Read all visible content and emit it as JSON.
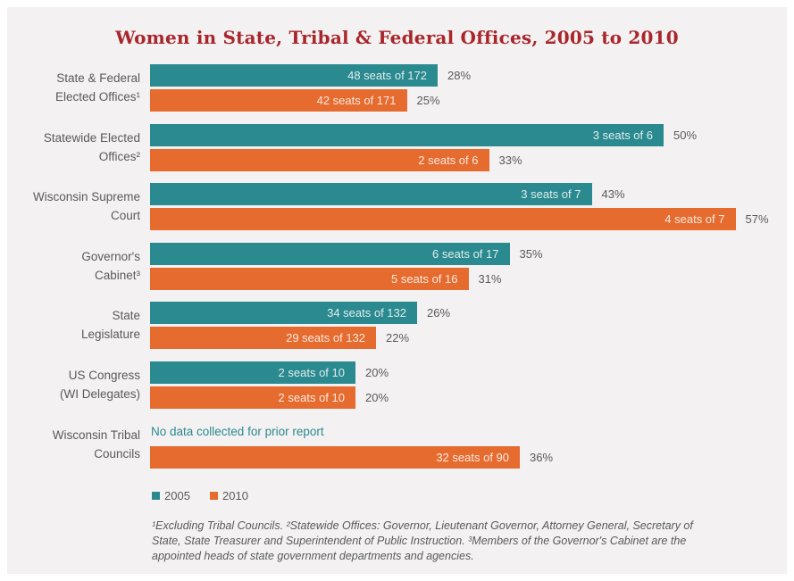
{
  "chart_data": {
    "type": "bar",
    "orientation": "horizontal",
    "title": "Women in State, Tribal & Federal Offices, 2005 to 2010",
    "categories": [
      "State & Federal\nElected Offices¹",
      "Statewide Elected\nOffices²",
      "Wisconsin Supreme\nCourt",
      "Governor's\nCabinet³",
      "State\nLegislature",
      "US Congress\n(WI Delegates)",
      "Wisconsin Tribal\nCouncils"
    ],
    "series": [
      {
        "name": "2005",
        "color": "#2b8a8f",
        "values": [
          28,
          50,
          43,
          35,
          26,
          20,
          null
        ],
        "bar_labels": [
          "48 seats of 172",
          "3 seats of 6",
          "3 seats of 7",
          "6 seats of 17",
          "34 seats of 132",
          "2 seats of 10",
          ""
        ],
        "value_labels": [
          "28%",
          "50%",
          "43%",
          "35%",
          "26%",
          "20%",
          ""
        ]
      },
      {
        "name": "2010",
        "color": "#e66b2f",
        "values": [
          25,
          33,
          57,
          31,
          22,
          20,
          36
        ],
        "bar_labels": [
          "42 seats of 171",
          "2 seats of 6",
          "4 seats of 7",
          "5 seats of 16",
          "29 seats of 132",
          "2 seats of 10",
          "32 seats of 90"
        ],
        "value_labels": [
          "25%",
          "33%",
          "57%",
          "31%",
          "22%",
          "20%",
          "36%"
        ]
      }
    ],
    "annotations": [
      "No data collected for prior report"
    ],
    "legend_position": "bottom-left",
    "grid": false
  },
  "footnote": "¹Excluding Tribal Councils. ²Statewide Offices: Governor, Lieutenant Governor, Attorney General, Secretary of State, State Treasurer and Superintendent of Public Instruction. ³Members of the Governor's Cabinet are the appointed heads of state government departments and agencies."
}
